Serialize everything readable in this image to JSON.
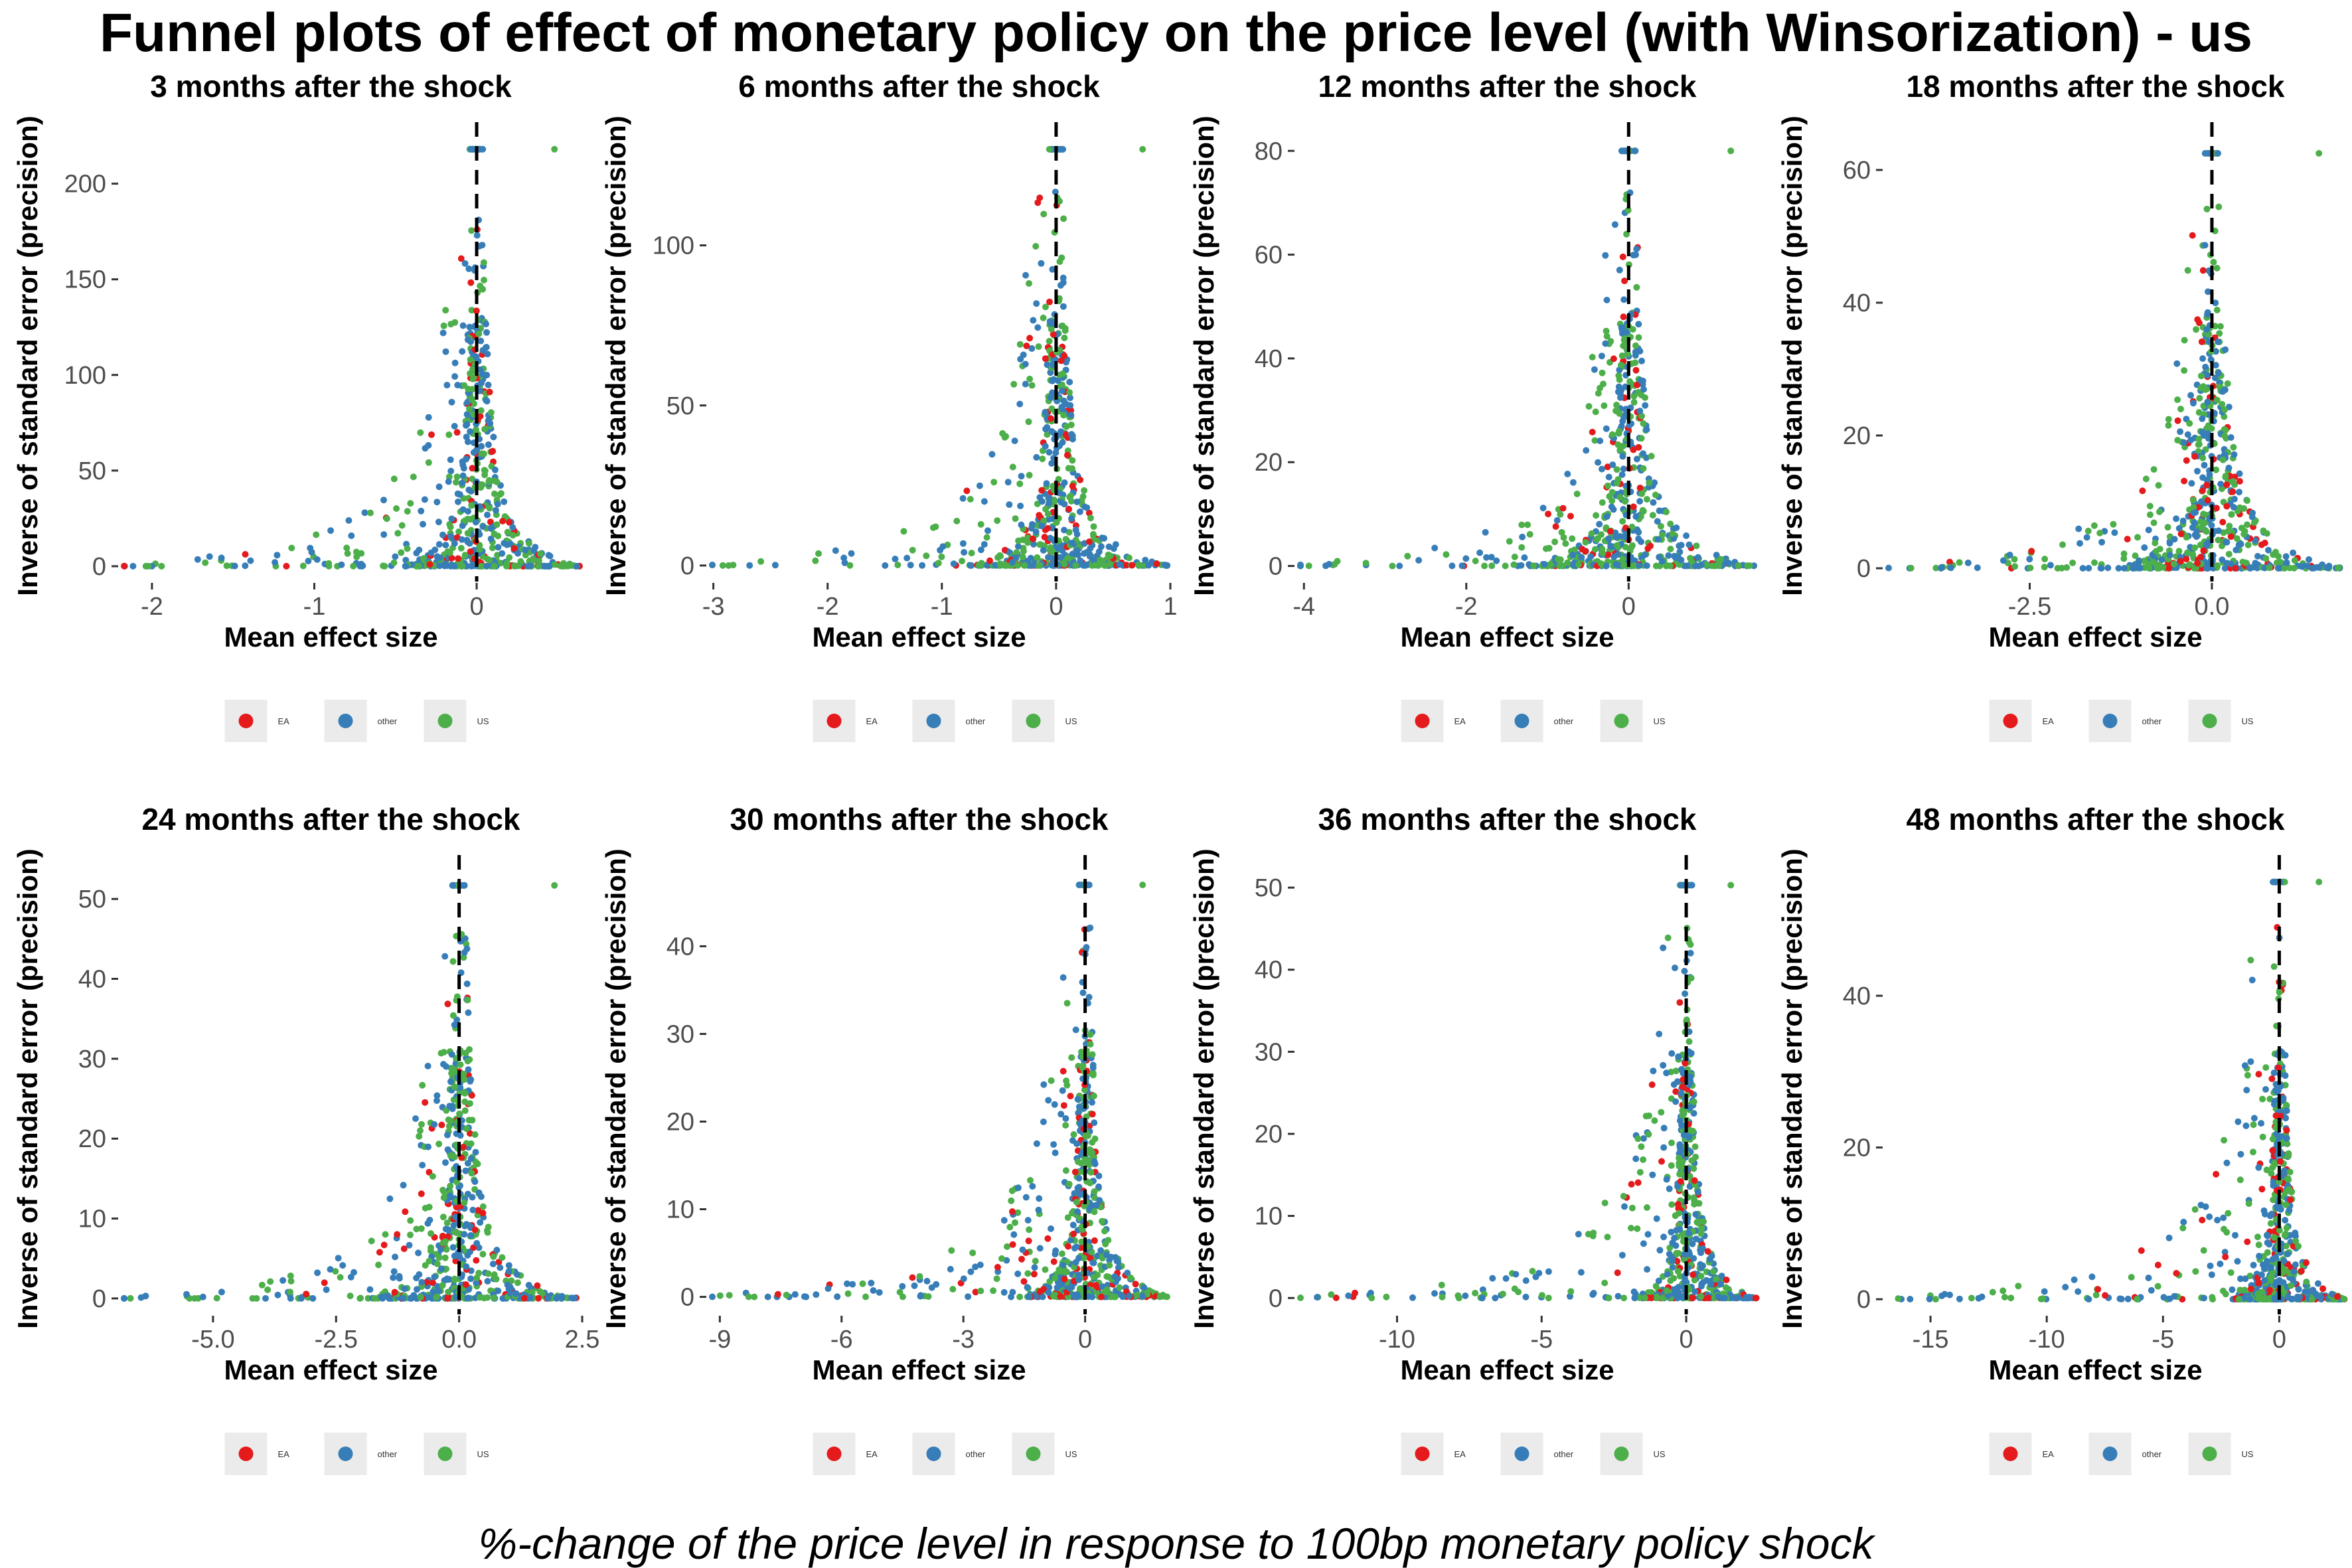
{
  "title": "Funnel plots of effect of monetary policy on the price level (with Winsorization) - us",
  "caption": "%-change of the price level in response to 100bp monetary policy shock",
  "colors": {
    "EA": "#e41a1c",
    "other": "#377eb8",
    "US": "#4daf4a"
  },
  "chart_data": [
    {
      "type": "scatter",
      "title": "3 months after the shock",
      "xlabel": "Mean effect size",
      "ylabel": "Inverse of standard error (precision)",
      "xlim": [
        -2.2,
        0.65
      ],
      "ylim": [
        -8,
        228
      ],
      "xticks": [
        -2,
        -1,
        0
      ],
      "xtick_labels": [
        "-2",
        "-1",
        "0"
      ],
      "yticks": [
        0,
        50,
        100,
        150,
        200
      ],
      "ytick_labels": [
        "0",
        "50",
        "100",
        "150",
        "200"
      ],
      "vline": 0,
      "ymax_precision": 218,
      "legend": {
        "position": "bottom",
        "entries": [
          "EA",
          "other",
          "US"
        ]
      }
    },
    {
      "type": "scatter",
      "title": "6 months after the shock",
      "xlabel": "Mean effect size",
      "ylabel": "Inverse of standard error (precision)",
      "xlim": [
        -3.05,
        1.0
      ],
      "ylim": [
        -5,
        136
      ],
      "xticks": [
        -3,
        -2,
        -1,
        0,
        1
      ],
      "xtick_labels": [
        "-3",
        "-2",
        "-1",
        "0",
        "1"
      ],
      "yticks": [
        0,
        50,
        100
      ],
      "ytick_labels": [
        "0",
        "50",
        "100"
      ],
      "vline": 0,
      "ymax_precision": 130,
      "legend": {
        "position": "bottom",
        "entries": [
          "EA",
          "other",
          "US"
        ]
      }
    },
    {
      "type": "scatter",
      "title": "12 months after the shock",
      "xlabel": "Mean effect size",
      "ylabel": "Inverse of standard error (precision)",
      "xlim": [
        -4.1,
        1.6
      ],
      "ylim": [
        -3,
        84
      ],
      "xticks": [
        -4,
        -2,
        0
      ],
      "xtick_labels": [
        "-4",
        "-2",
        "0"
      ],
      "yticks": [
        0,
        20,
        40,
        60,
        80
      ],
      "ytick_labels": [
        "0",
        "20",
        "40",
        "60",
        "80"
      ],
      "vline": 0,
      "ymax_precision": 80,
      "legend": {
        "position": "bottom",
        "entries": [
          "EA",
          "other",
          "US"
        ]
      }
    },
    {
      "type": "scatter",
      "title": "18 months after the shock",
      "xlabel": "Mean effect size",
      "ylabel": "Inverse of standard error (precision)",
      "xlim": [
        -4.5,
        1.85
      ],
      "ylim": [
        -2,
        66
      ],
      "xticks": [
        -2.5,
        0
      ],
      "xtick_labels": [
        "-2.5",
        "0.0"
      ],
      "yticks": [
        0,
        20,
        40,
        60
      ],
      "ytick_labels": [
        "0",
        "20",
        "40",
        "60"
      ],
      "vline": 0,
      "ymax_precision": 62.5,
      "legend": {
        "position": "bottom",
        "entries": [
          "EA",
          "other",
          "US"
        ]
      }
    },
    {
      "type": "scatter",
      "title": "24 months after the shock",
      "xlabel": "Mean effect size",
      "ylabel": "Inverse of standard error (precision)",
      "xlim": [
        -6.9,
        2.5
      ],
      "ylim": [
        -2,
        54.5
      ],
      "xticks": [
        -5,
        -2.5,
        0,
        2.5
      ],
      "xtick_labels": [
        "-5.0",
        "-2.5",
        "0.0",
        "2.5"
      ],
      "yticks": [
        0,
        10,
        20,
        30,
        40,
        50
      ],
      "ytick_labels": [
        "0",
        "10",
        "20",
        "30",
        "40",
        "50"
      ],
      "vline": 0,
      "ymax_precision": 51.7,
      "legend": {
        "position": "bottom",
        "entries": [
          "EA",
          "other",
          "US"
        ]
      }
    },
    {
      "type": "scatter",
      "title": "30 months after the shock",
      "xlabel": "Mean effect size",
      "ylabel": "Inverse of standard error (precision)",
      "xlim": [
        -9.3,
        2.1
      ],
      "ylim": [
        -2,
        49.5
      ],
      "xticks": [
        -9,
        -6,
        -3,
        0
      ],
      "xtick_labels": [
        "-9",
        "-6",
        "-3",
        "0"
      ],
      "yticks": [
        0,
        10,
        20,
        30,
        40
      ],
      "ytick_labels": [
        "0",
        "10",
        "20",
        "30",
        "40"
      ],
      "vline": 0,
      "ymax_precision": 47,
      "legend": {
        "position": "bottom",
        "entries": [
          "EA",
          "other",
          "US"
        ]
      }
    },
    {
      "type": "scatter",
      "title": "36 months after the shock",
      "xlabel": "Mean effect size",
      "ylabel": "Inverse of standard error (precision)",
      "xlim": [
        -13.5,
        2.5
      ],
      "ylim": [
        -2,
        53
      ],
      "xticks": [
        -10,
        -5,
        0
      ],
      "xtick_labels": [
        "-10",
        "-5",
        "0"
      ],
      "yticks": [
        0,
        10,
        20,
        30,
        40,
        50
      ],
      "ytick_labels": [
        "0",
        "10",
        "20",
        "30",
        "40",
        "50"
      ],
      "vline": 0,
      "ymax_precision": 50.3,
      "legend": {
        "position": "bottom",
        "entries": [
          "EA",
          "other",
          "US"
        ]
      }
    },
    {
      "type": "scatter",
      "title": "48 months after the shock",
      "xlabel": "Mean effect size",
      "ylabel": "Inverse of standard error (precision)",
      "xlim": [
        -17,
        2.9
      ],
      "ylim": [
        -2,
        57.5
      ],
      "xticks": [
        -15,
        -10,
        -5,
        0
      ],
      "xtick_labels": [
        "-15",
        "-10",
        "-5",
        "0"
      ],
      "yticks": [
        0,
        20,
        40
      ],
      "ytick_labels": [
        "0",
        "20",
        "40"
      ],
      "vline": 0,
      "ymax_precision": 55,
      "legend": {
        "position": "bottom",
        "entries": [
          "EA",
          "other",
          "US"
        ]
      }
    }
  ]
}
